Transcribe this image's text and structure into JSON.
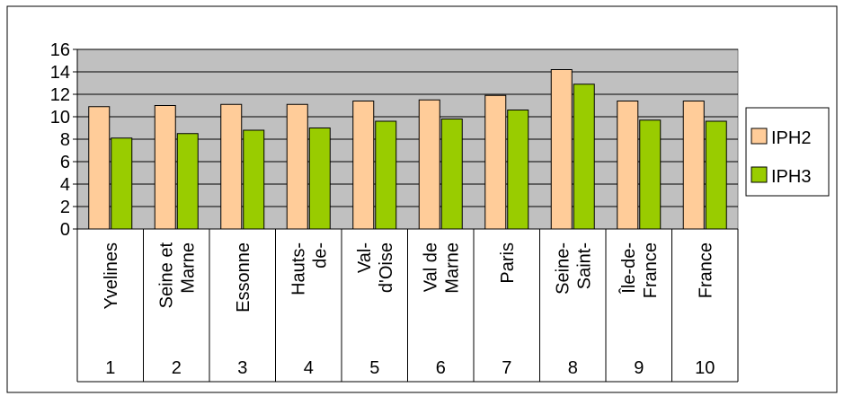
{
  "chart_data": {
    "type": "bar",
    "categories": [
      {
        "lines": [
          "Yvelines"
        ],
        "number": "1"
      },
      {
        "lines": [
          "Seine et",
          "Marne"
        ],
        "number": "2"
      },
      {
        "lines": [
          "Essonne"
        ],
        "number": "3"
      },
      {
        "lines": [
          "Hauts-",
          "de-"
        ],
        "number": "4"
      },
      {
        "lines": [
          "Val-",
          "d'Oise"
        ],
        "number": "5"
      },
      {
        "lines": [
          "Val de",
          "Marne"
        ],
        "number": "6"
      },
      {
        "lines": [
          "Paris"
        ],
        "number": "7"
      },
      {
        "lines": [
          "Seine-",
          "Saint-"
        ],
        "number": "8"
      },
      {
        "lines": [
          "Île-de-",
          "France"
        ],
        "number": "9"
      },
      {
        "lines": [
          "France"
        ],
        "number": "10"
      }
    ],
    "series": [
      {
        "name": "IPH2",
        "color": "#FFCC99",
        "values": [
          10.9,
          11.0,
          11.1,
          11.1,
          11.4,
          11.5,
          11.9,
          14.2,
          11.4,
          11.4
        ]
      },
      {
        "name": "IPH3",
        "color": "#99CC00",
        "values": [
          8.1,
          8.5,
          8.8,
          9.0,
          9.6,
          9.8,
          10.6,
          12.9,
          9.7,
          9.6
        ]
      }
    ],
    "yticks": [
      "0",
      "2",
      "4",
      "6",
      "8",
      "10",
      "12",
      "14",
      "16"
    ],
    "ylim": [
      0,
      16
    ],
    "plot_background": "#C0C0C0",
    "grid": true,
    "legend_position": "right"
  }
}
